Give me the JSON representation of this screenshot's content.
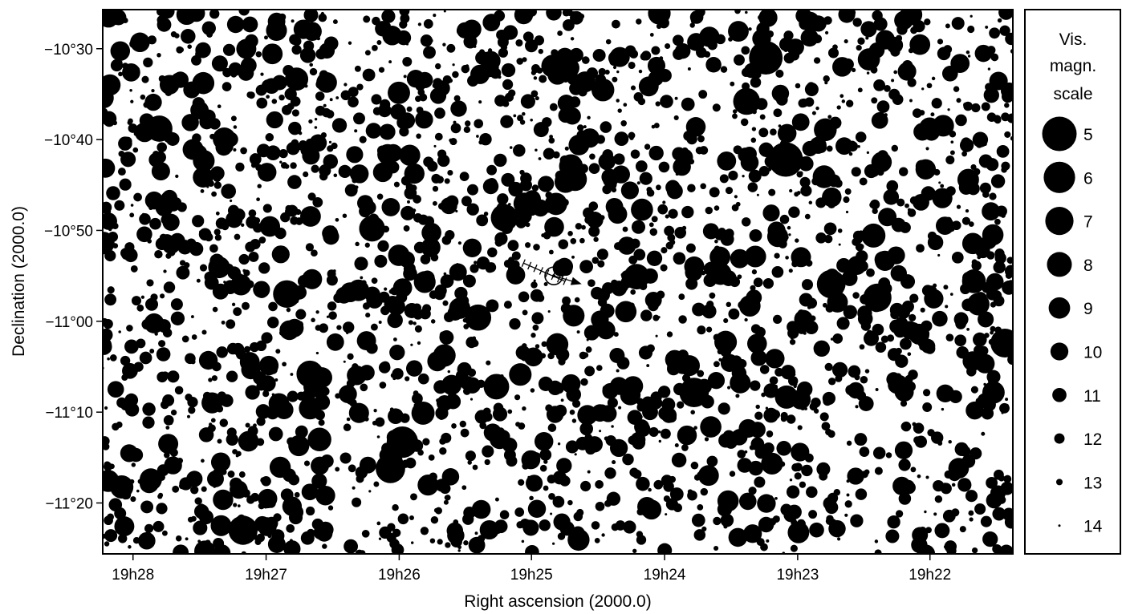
{
  "chart_data": {
    "type": "scatter",
    "title": "",
    "xlabel": "Right ascension (2000.0)",
    "ylabel": "Declination (2000.0)",
    "x_unit": "hours of right ascension (decreasing to the right)",
    "xlim": [
      19.4705,
      19.3563
    ],
    "ylim": [
      -11.4267,
      -10.4283
    ],
    "x_ticks": [
      {
        "value": 19.4667,
        "label": "19h28"
      },
      {
        "value": 19.45,
        "label": "19h27"
      },
      {
        "value": 19.4333,
        "label": "19h26"
      },
      {
        "value": 19.4167,
        "label": "19h25"
      },
      {
        "value": 19.4,
        "label": "19h24"
      },
      {
        "value": 19.3833,
        "label": "19h23"
      },
      {
        "value": 19.3667,
        "label": "19h22"
      }
    ],
    "y_ticks": [
      {
        "value": -10.5,
        "label": "−10°30"
      },
      {
        "value": -10.6667,
        "label": "−10°40"
      },
      {
        "value": -10.8333,
        "label": "−10°50"
      },
      {
        "value": -11.0,
        "label": "−11°00"
      },
      {
        "value": -11.1667,
        "label": "−11°10"
      },
      {
        "value": -11.3333,
        "label": "−11°20"
      }
    ],
    "grid": false,
    "legend": {
      "title_lines": [
        "Vis.",
        "magn.",
        "scale"
      ],
      "placement": "right",
      "magnitudes": [
        5,
        6,
        7,
        8,
        9,
        10,
        11,
        12,
        13,
        14
      ]
    },
    "bright_stars": [
      {
        "ra": 19.3873,
        "dec": -10.5167,
        "mag": 5.3
      },
      {
        "ra": 19.3848,
        "dec": -10.7033,
        "mag": 5.0
      },
      {
        "ra": 19.4329,
        "dec": -11.2217,
        "mag": 6.0
      },
      {
        "ra": 19.3963,
        "dec": -11.1306,
        "mag": 6.6
      },
      {
        "ra": 19.4344,
        "dec": -11.27,
        "mag": 6.6
      },
      {
        "ra": 19.4529,
        "dec": -11.3833,
        "mag": 6.7
      },
      {
        "ra": 19.3573,
        "dec": -11.04,
        "mag": 6.8
      },
      {
        "ra": 19.3791,
        "dec": -10.9317,
        "mag": 6.9
      },
      {
        "ra": 19.3733,
        "dec": -10.9567,
        "mag": 7.0
      },
      {
        "ra": 19.4474,
        "dec": -10.95,
        "mag": 7.2
      },
      {
        "ra": 19.4201,
        "dec": -10.81,
        "mag": 7.3
      },
      {
        "ra": 19.4445,
        "dec": -11.0967,
        "mag": 7.4
      },
      {
        "ra": 19.3897,
        "dec": -10.5967,
        "mag": 7.4
      },
      {
        "ra": 19.4634,
        "dec": -10.6467,
        "mag": 7.6
      },
      {
        "ra": 19.4234,
        "dec": -10.9933,
        "mag": 7.6
      },
      {
        "ra": 19.4367,
        "dec": -10.83,
        "mag": 7.7
      },
      {
        "ra": 19.4035,
        "dec": -10.9183,
        "mag": 7.8
      },
      {
        "ra": 19.4211,
        "dec": -11.12,
        "mag": 7.8
      },
      {
        "ra": 19.3893,
        "dec": -10.9717,
        "mag": 9.0
      }
    ],
    "field_stars": {
      "count": 2600,
      "magnitude_range": [
        8,
        14
      ],
      "distribution": "random uniform across the field"
    },
    "comet_track": {
      "start": {
        "ra": 19.4177,
        "dec": -10.8933
      },
      "end": {
        "ra": 19.4125,
        "dec": -10.9267
      },
      "position_circle": {
        "ra": 19.4139,
        "dec": -10.9167
      },
      "arrow_tip": {
        "ra": 19.4104,
        "dec": -10.9317
      },
      "tick_marks": 8
    }
  }
}
